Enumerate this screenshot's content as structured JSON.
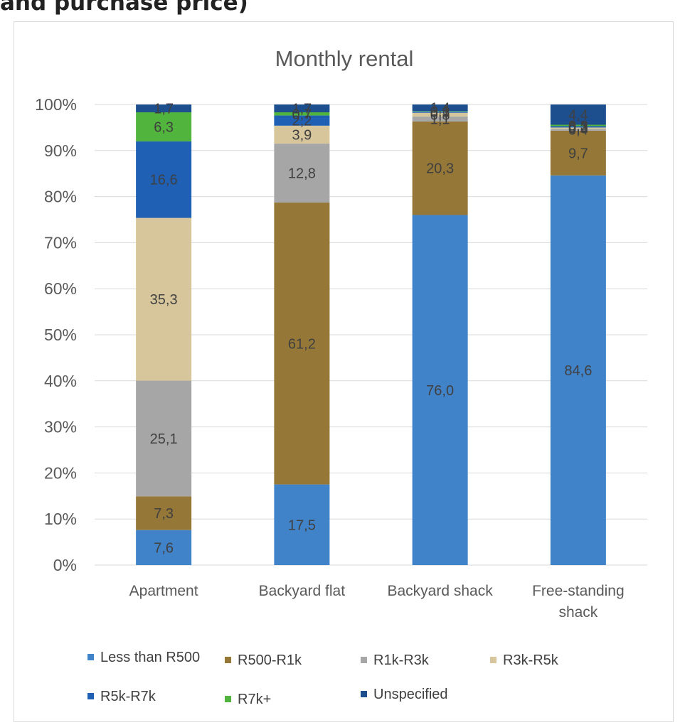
{
  "page_heading": "and purchase price)",
  "chart_data": {
    "type": "bar",
    "stacked": true,
    "percent_stacked": true,
    "title": "Monthly rental",
    "xlabel": "",
    "ylabel": "",
    "ylim": [
      0,
      100
    ],
    "yticks": [
      "0%",
      "10%",
      "20%",
      "30%",
      "40%",
      "50%",
      "60%",
      "70%",
      "80%",
      "90%",
      "100%"
    ],
    "categories": [
      [
        "Apartment"
      ],
      [
        "Backyard flat"
      ],
      [
        "Backyard shack"
      ],
      [
        "Free-standing",
        "shack"
      ]
    ],
    "series": [
      {
        "name": "Less than R500",
        "color": "#4183c8",
        "values": [
          7.6,
          17.5,
          76.0,
          84.6
        ],
        "labels": [
          "7,6",
          "17,5",
          "76,0",
          "84,6"
        ]
      },
      {
        "name": "R500-R1k",
        "color": "#957838",
        "values": [
          7.3,
          61.2,
          20.3,
          9.7
        ],
        "labels": [
          "7,3",
          "61,2",
          "20,3",
          "9,7"
        ]
      },
      {
        "name": "R1k-R3k",
        "color": "#a6a6a6",
        "values": [
          25.1,
          12.8,
          1.1,
          0.4
        ],
        "labels": [
          "25,1",
          "12,8",
          "1,1",
          "0,4"
        ]
      },
      {
        "name": "R3k-R5k",
        "color": "#d7c69b",
        "values": [
          35.3,
          3.9,
          0.8,
          0.3
        ],
        "labels": [
          "35,3",
          "3,9",
          "0,8",
          "0,3"
        ]
      },
      {
        "name": "R5k-R7k",
        "color": "#1f5fb4",
        "values": [
          16.6,
          2.2,
          0.3,
          0.3
        ],
        "labels": [
          "16,6",
          "2,2",
          "0,3",
          "0,3"
        ]
      },
      {
        "name": "R7k+",
        "color": "#51b43d",
        "values": [
          6.3,
          0.7,
          0.1,
          0.3
        ],
        "labels": [
          "6,3",
          "0,7",
          "0,1",
          "0,3"
        ]
      },
      {
        "name": "Unspecified",
        "color": "#1d4f8e",
        "values": [
          1.7,
          1.7,
          1.4,
          4.4
        ],
        "labels": [
          "1,7",
          "1,7",
          "1,4",
          "4,4"
        ]
      }
    ],
    "grid": true,
    "legend_position": "bottom"
  }
}
